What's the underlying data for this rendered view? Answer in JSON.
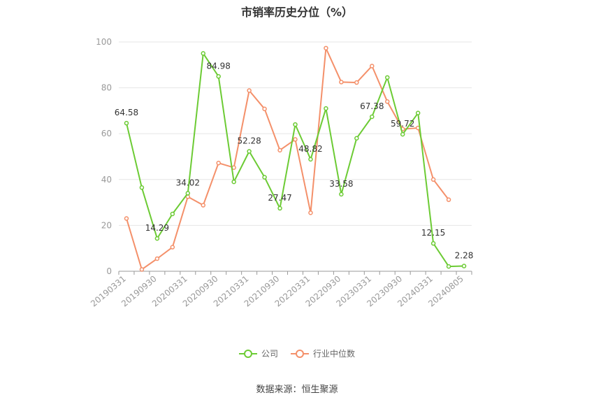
{
  "title": "市销率历史分位（%）",
  "source": "数据来源：恒生聚源",
  "colors": {
    "company": "#6ccb34",
    "industry": "#f4906a",
    "grid": "#e6e6e6",
    "axis": "#999999"
  },
  "legend": {
    "company": "公司",
    "industry": "行业中位数"
  },
  "chart_data": {
    "type": "line",
    "ylim": [
      0,
      100
    ],
    "yticks": [
      0,
      20,
      40,
      60,
      80,
      100
    ],
    "x": [
      "20190331",
      "20190630",
      "20190930",
      "20191231",
      "20200331",
      "20200630",
      "20200930",
      "20201231",
      "20210331",
      "20210630",
      "20210930",
      "20211231",
      "20220331",
      "20220630",
      "20220930",
      "20221231",
      "20230331",
      "20230630",
      "20230930",
      "20231231",
      "20240331",
      "20240630",
      "20240805"
    ],
    "xtick_labels": [
      "20190331",
      "20190930",
      "20200331",
      "20200930",
      "20210331",
      "20210930",
      "20220331",
      "20220930",
      "20230331",
      "20230930",
      "20240331",
      "20240805"
    ],
    "series": [
      {
        "name": "公司",
        "color": "#6ccb34",
        "values": [
          64.58,
          36.5,
          14.29,
          25.0,
          34.02,
          95.0,
          84.98,
          39.0,
          52.28,
          41.0,
          27.47,
          64.0,
          48.82,
          71.0,
          33.58,
          58.0,
          67.38,
          84.5,
          59.72,
          69.0,
          12.15,
          2.1,
          2.28
        ],
        "labels": {
          "0": "64.58",
          "2": "14.29",
          "4": "34.02",
          "6": "84.98",
          "8": "52.28",
          "10": "27.47",
          "12": "48.82",
          "14": "33.58",
          "16": "67.38",
          "18": "59.72",
          "20": "12.15",
          "22": "2.28"
        }
      },
      {
        "name": "行业中位数",
        "color": "#f4906a",
        "values": [
          23.0,
          0.8,
          5.5,
          10.5,
          32.5,
          28.8,
          47.2,
          45.2,
          78.8,
          70.8,
          52.8,
          57.5,
          25.5,
          97.3,
          82.5,
          82.3,
          89.5,
          74.0,
          62.0,
          62.5,
          40.0,
          31.2,
          null
        ]
      }
    ]
  }
}
